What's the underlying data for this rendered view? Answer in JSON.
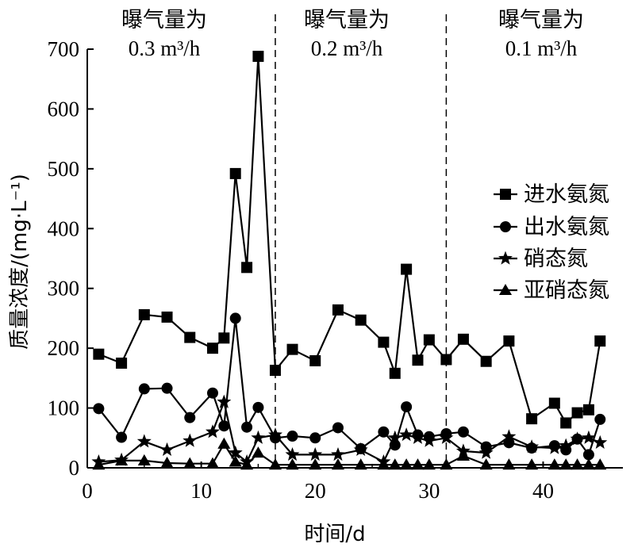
{
  "chart_data": {
    "type": "line",
    "xlabel": "时间/d",
    "ylabel": "质量浓度/(mg·L⁻¹)",
    "xlim": [
      0,
      47
    ],
    "ylim": [
      0,
      700
    ],
    "x_ticks": [
      "0",
      "10",
      "20",
      "30",
      "40"
    ],
    "y_ticks": [
      "0",
      "100",
      "200",
      "300",
      "400",
      "500",
      "600",
      "700"
    ],
    "dividers": [
      16.5,
      31.5
    ],
    "regions": [
      {
        "line1": "曝气量为",
        "line2": "0.3 m³/h"
      },
      {
        "line1": "曝气量为",
        "line2": "0.2 m³/h"
      },
      {
        "line1": "曝气量为",
        "line2": "0.1 m³/h"
      }
    ],
    "legend_position": "right",
    "series": [
      {
        "name": "进水氨氮",
        "marker": "square",
        "x": [
          1,
          3,
          5,
          7,
          9,
          11,
          12,
          13,
          14,
          15,
          16.5,
          18,
          20,
          22,
          24,
          26,
          27,
          28,
          29,
          30,
          31.5,
          33,
          35,
          37,
          39,
          41,
          42,
          43,
          44,
          45
        ],
        "y": [
          190,
          175,
          256,
          252,
          218,
          200,
          217,
          492,
          335,
          688,
          163,
          198,
          179,
          264,
          247,
          210,
          158,
          332,
          180,
          214,
          181,
          215,
          178,
          212,
          82,
          108,
          75,
          92,
          97,
          212
        ]
      },
      {
        "name": "出水氨氮",
        "marker": "circle",
        "x": [
          1,
          3,
          5,
          7,
          9,
          11,
          12,
          13,
          14,
          15,
          16.5,
          18,
          20,
          22,
          24,
          26,
          27,
          28,
          29,
          30,
          31.5,
          33,
          35,
          37,
          39,
          41,
          42,
          43,
          44,
          45
        ],
        "y": [
          99,
          51,
          132,
          133,
          84,
          125,
          70,
          250,
          68,
          101,
          50,
          53,
          50,
          67,
          32,
          60,
          38,
          102,
          55,
          52,
          57,
          60,
          35,
          42,
          33,
          37,
          30,
          48,
          22,
          81
        ]
      },
      {
        "name": "硝态氮",
        "marker": "star",
        "x": [
          1,
          3,
          5,
          7,
          9,
          11,
          12,
          13,
          14,
          15,
          16.5,
          18,
          20,
          22,
          24,
          26,
          27,
          28,
          29,
          30,
          31.5,
          33,
          35,
          37,
          39,
          41,
          42,
          43,
          44,
          45
        ],
        "y": [
          10,
          13,
          44,
          30,
          45,
          60,
          110,
          25,
          10,
          50,
          55,
          22,
          22,
          22,
          30,
          10,
          50,
          55,
          50,
          45,
          50,
          28,
          25,
          52,
          35,
          33,
          37,
          48,
          50,
          42
        ]
      },
      {
        "name": "亚硝态氮",
        "marker": "triangle",
        "x": [
          1,
          3,
          5,
          7,
          9,
          11,
          12,
          13,
          14,
          15,
          16.5,
          18,
          20,
          22,
          24,
          26,
          27,
          28,
          29,
          30,
          31.5,
          33,
          35,
          37,
          39,
          41,
          42,
          43,
          44,
          45
        ],
        "y": [
          5,
          12,
          12,
          8,
          7,
          7,
          40,
          10,
          5,
          25,
          5,
          5,
          5,
          5,
          5,
          5,
          5,
          5,
          5,
          5,
          5,
          20,
          5,
          5,
          5,
          5,
          5,
          5,
          5,
          5
        ]
      }
    ]
  }
}
